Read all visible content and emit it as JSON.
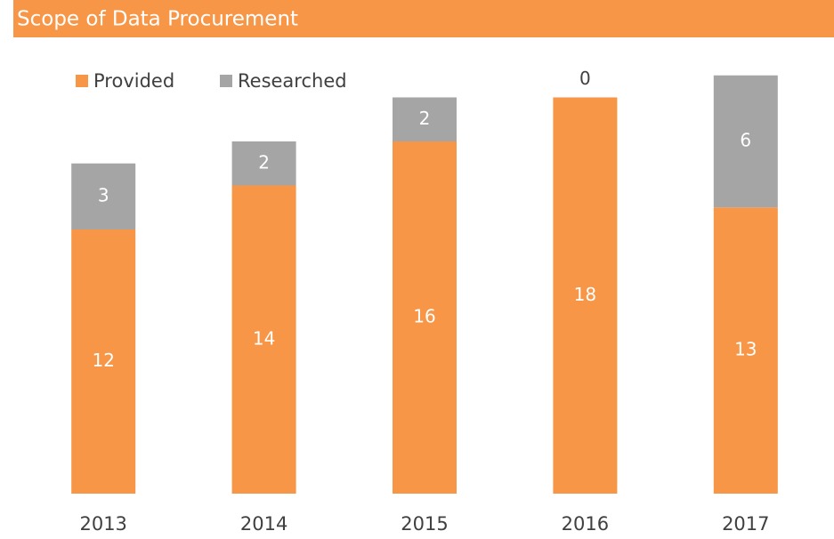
{
  "chart_data": {
    "type": "stacked_bar",
    "title": "Scope of Data Procurement",
    "categories": [
      "2013",
      "2014",
      "2015",
      "2016",
      "2017"
    ],
    "series": [
      {
        "name": "Provided",
        "color": "#f79646",
        "values": [
          12,
          14,
          16,
          18,
          13
        ]
      },
      {
        "name": "Researched",
        "color": "#a5a5a5",
        "values": [
          3,
          2,
          2,
          0,
          6
        ]
      }
    ],
    "ylim": [
      0,
      20
    ],
    "legend": "top-left"
  }
}
